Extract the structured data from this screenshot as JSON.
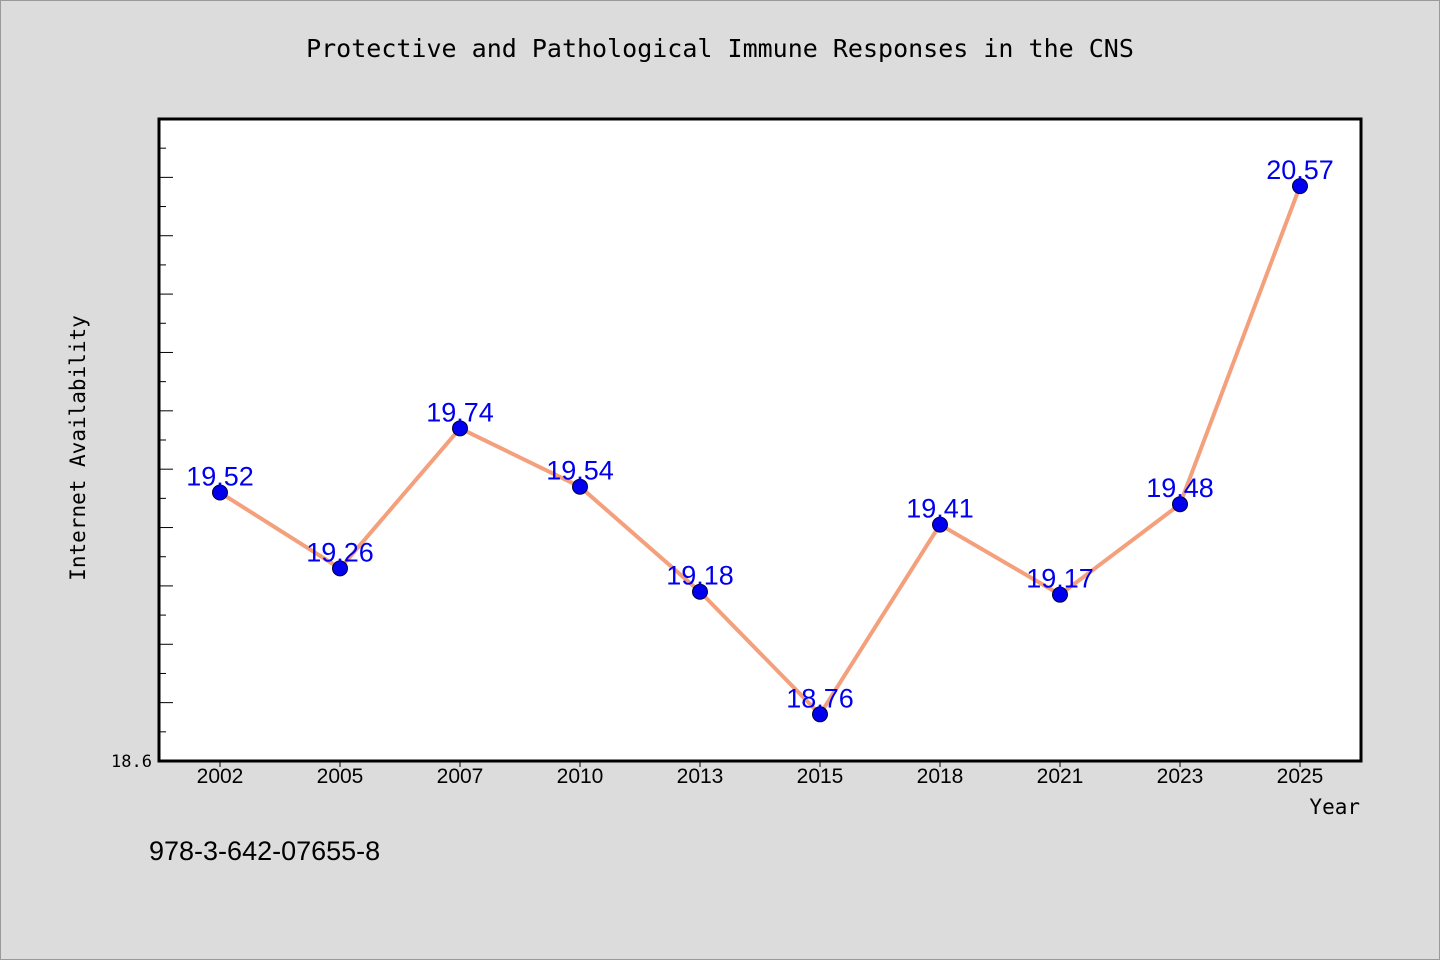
{
  "chart_data": {
    "type": "line",
    "title": "Protective and Pathological Immune Responses in the CNS",
    "xlabel": "Year",
    "ylabel": "Internet Availability",
    "categories": [
      "2002",
      "2005",
      "2007",
      "2010",
      "2013",
      "2015",
      "2018",
      "2021",
      "2023",
      "2025"
    ],
    "series": [
      {
        "values": [
          19.52,
          19.26,
          19.74,
          19.54,
          19.18,
          18.76,
          19.41,
          19.17,
          19.48,
          20.57
        ]
      }
    ],
    "y_tick_labels": [
      "18.6"
    ],
    "ylim": [
      18.6,
      20.8
    ],
    "grid": false,
    "data_labels": true,
    "line_color": "#f4a07c",
    "marker_color": "#0000ee",
    "label_color": "#0000ee",
    "background_color": "#dcdcdc",
    "plot_background_color": "#ffffff"
  },
  "footer": {
    "isbn": "978-3-642-07655-8"
  }
}
